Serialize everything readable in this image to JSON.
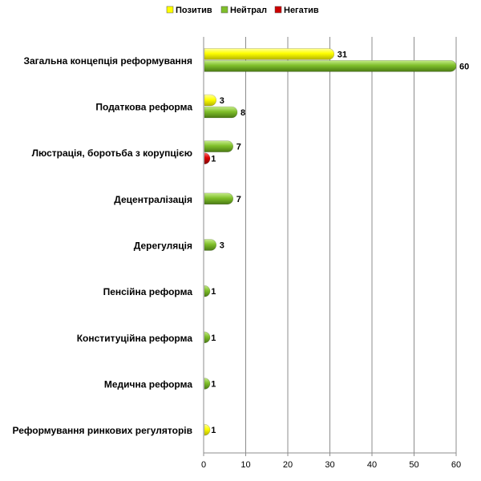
{
  "chart_data": {
    "type": "bar",
    "orientation": "horizontal",
    "categories": [
      "Загальна концепція реформування",
      "Податкова реформа",
      "Люстрація, боротьба з корупцією",
      "Децентралізація",
      "Дерегуляція",
      "Пенсійна реформа",
      "Конституційна реформа",
      "Медична реформа",
      "Реформування ринкових регуляторів"
    ],
    "series": [
      {
        "name": "Позитив",
        "color": "#ffff00",
        "values": [
          31,
          3,
          null,
          null,
          null,
          null,
          null,
          null,
          1
        ]
      },
      {
        "name": "Нейтрал",
        "color": "#7fbf2a",
        "values": [
          60,
          8,
          7,
          7,
          3,
          1,
          1,
          1,
          null
        ]
      },
      {
        "name": "Негатив",
        "color": "#cc0000",
        "values": [
          null,
          null,
          1,
          null,
          null,
          null,
          null,
          null,
          null
        ]
      }
    ],
    "xlim": [
      0,
      60
    ],
    "xticks": [
      0,
      10,
      20,
      30,
      40,
      50,
      60
    ],
    "grid": true,
    "legend_position": "top"
  }
}
